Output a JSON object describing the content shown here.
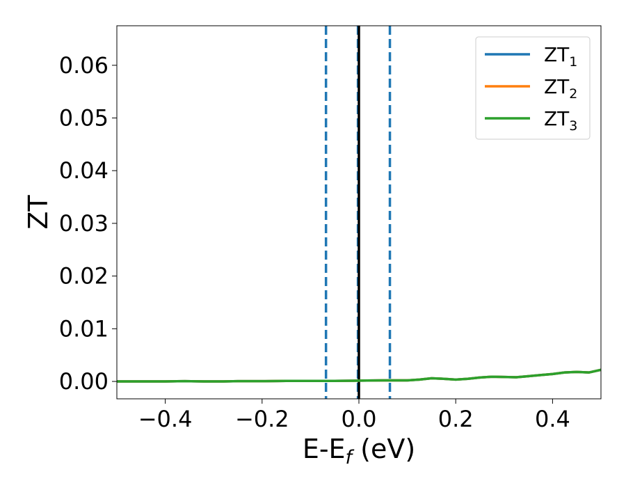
{
  "chart_data": {
    "type": "line",
    "title": "",
    "xlabel": "E-E",
    "xlabel_sub": "f",
    "xlabel_unit": " (eV)",
    "ylabel": "ZT",
    "xlim": [
      -0.5,
      0.5
    ],
    "ylim": [
      -0.0033,
      0.0675
    ],
    "xticks": [
      -0.4,
      -0.2,
      0.0,
      0.2,
      0.4
    ],
    "xtick_labels": [
      "−0.4",
      "−0.2",
      "0.0",
      "0.2",
      "0.4"
    ],
    "yticks": [
      0.0,
      0.01,
      0.02,
      0.03,
      0.04,
      0.05,
      0.06
    ],
    "ytick_labels": [
      "0.00",
      "0.01",
      "0.02",
      "0.03",
      "0.04",
      "0.05",
      "0.06"
    ],
    "grid": false,
    "legend_position": "top-right",
    "x": [
      -0.5,
      -0.45,
      -0.4,
      -0.36,
      -0.32,
      -0.28,
      -0.25,
      -0.2,
      -0.15,
      -0.1,
      -0.05,
      0.0,
      0.05,
      0.1,
      0.125,
      0.15,
      0.175,
      0.2,
      0.225,
      0.25,
      0.275,
      0.3,
      0.325,
      0.35,
      0.375,
      0.4,
      0.425,
      0.45,
      0.475,
      0.5
    ],
    "series": [
      {
        "name": "ZT",
        "name_sub": "1",
        "color": "#1f77b4",
        "values": [
          0.0,
          0.0,
          0.0,
          5e-05,
          0.0,
          0.0,
          5e-05,
          5e-05,
          0.0001,
          0.0001,
          0.0001,
          0.00015,
          0.0002,
          0.0002,
          0.00035,
          0.0006,
          0.0005,
          0.00035,
          0.0005,
          0.00075,
          0.0009,
          0.00085,
          0.0008,
          0.001,
          0.0012,
          0.0014,
          0.0017,
          0.0018,
          0.0017,
          0.0022
        ]
      },
      {
        "name": "ZT",
        "name_sub": "2",
        "color": "#ff7f0e",
        "values": [
          0.0,
          0.0,
          0.0,
          5e-05,
          0.0,
          0.0,
          5e-05,
          5e-05,
          0.0001,
          0.0001,
          0.0001,
          0.00015,
          0.0002,
          0.0002,
          0.00035,
          0.0006,
          0.0005,
          0.00035,
          0.0005,
          0.00075,
          0.0009,
          0.00085,
          0.0008,
          0.001,
          0.0012,
          0.0014,
          0.0017,
          0.0018,
          0.0017,
          0.0022
        ]
      },
      {
        "name": "ZT",
        "name_sub": "3",
        "color": "#2ca02c",
        "values": [
          0.0,
          0.0,
          0.0,
          5e-05,
          0.0,
          0.0,
          5e-05,
          5e-05,
          0.0001,
          0.0001,
          0.0001,
          0.00015,
          0.0002,
          0.0002,
          0.00035,
          0.0006,
          0.0005,
          0.00035,
          0.0005,
          0.00075,
          0.0009,
          0.00085,
          0.0008,
          0.001,
          0.0012,
          0.0014,
          0.0017,
          0.0018,
          0.0017,
          0.0022
        ]
      }
    ],
    "vlines": [
      {
        "x": -0.068,
        "style": "dashed",
        "color": "#1f77b4"
      },
      {
        "x": -0.002,
        "style": "dashed",
        "color": "#1f77b4"
      },
      {
        "x": 0.064,
        "style": "dashed",
        "color": "#1f77b4"
      },
      {
        "x": 0.0,
        "style": "solid",
        "color": "#000000"
      }
    ]
  }
}
